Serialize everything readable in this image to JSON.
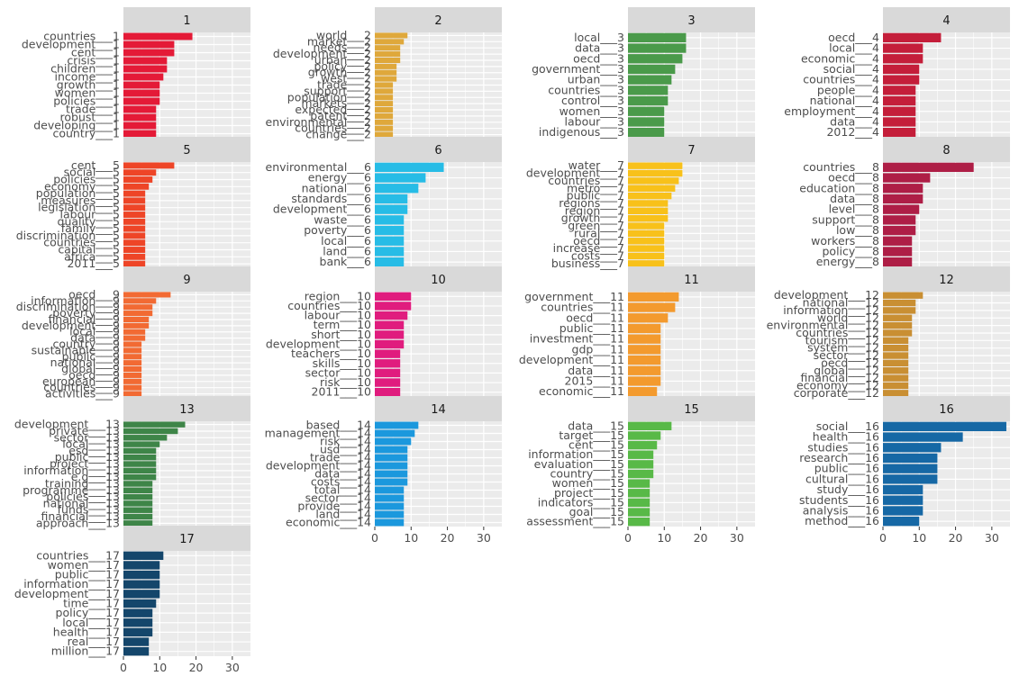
{
  "chart_data": {
    "type": "bar",
    "orientation": "horizontal",
    "facet_layout": "4 columns x 5 rows",
    "xlim": [
      0,
      35
    ],
    "x_ticks": [
      0,
      10,
      20,
      30
    ],
    "grid": true,
    "legend": "none",
    "panels": [
      {
        "title": "1",
        "color": "#E41A37",
        "terms": [
          "countries___1",
          "development___1",
          "cent___1",
          "crisis___1",
          "children___1",
          "income___1",
          "growth___1",
          "women___1",
          "policies___1",
          "trade___1",
          "robust___1",
          "developing___1",
          "country___1"
        ],
        "values": [
          19,
          14,
          14,
          12,
          12,
          11,
          10,
          10,
          10,
          9,
          9,
          9,
          9
        ]
      },
      {
        "title": "2",
        "color": "#DFA83B",
        "terms": [
          "world___2",
          "market___2",
          "needs___2",
          "development___2",
          "urban___2",
          "policy___2",
          "growth___2",
          "west___2",
          "trade___2",
          "support___2",
          "population___2",
          "markets___2",
          "expected___2",
          "patent___2",
          "environmental___2",
          "countries___2",
          "change___2"
        ],
        "values": [
          9,
          8,
          7,
          7,
          7,
          6,
          6,
          6,
          5,
          5,
          5,
          5,
          5,
          5,
          5,
          5,
          5
        ]
      },
      {
        "title": "3",
        "color": "#4A9A4A",
        "terms": [
          "local___3",
          "data___3",
          "oecd___3",
          "government___3",
          "urban___3",
          "countries___3",
          "control___3",
          "women___3",
          "labour___3",
          "indigenous___3"
        ],
        "values": [
          16,
          16,
          15,
          13,
          12,
          11,
          11,
          10,
          10,
          10
        ]
      },
      {
        "title": "4",
        "color": "#C41E3A",
        "terms": [
          "oecd___4",
          "local___4",
          "economic___4",
          "social___4",
          "countries___4",
          "people___4",
          "national___4",
          "employment___4",
          "data___4",
          "2012___4"
        ],
        "values": [
          16,
          11,
          11,
          10,
          10,
          9,
          9,
          9,
          9,
          9
        ]
      },
      {
        "title": "5",
        "color": "#EE4527",
        "terms": [
          "cent___5",
          "social___5",
          "policies___5",
          "economy___5",
          "population___5",
          "measures___5",
          "legislation___5",
          "labour___5",
          "quality___5",
          "family___5",
          "discrimination___5",
          "countries___5",
          "capital___5",
          "africa___5",
          "2011___5"
        ],
        "values": [
          14,
          9,
          8,
          7,
          6,
          6,
          6,
          6,
          6,
          6,
          6,
          6,
          6,
          6,
          6
        ]
      },
      {
        "title": "6",
        "color": "#27BCE6",
        "terms": [
          "environmental___6",
          "energy___6",
          "national___6",
          "standards___6",
          "development___6",
          "waste___6",
          "poverty___6",
          "local___6",
          "land___6",
          "bank___6"
        ],
        "values": [
          19,
          14,
          12,
          9,
          9,
          8,
          8,
          8,
          8,
          8
        ]
      },
      {
        "title": "7",
        "color": "#F8C11A",
        "terms": [
          "water___7",
          "development___7",
          "countries___7",
          "metro___7",
          "public___7",
          "regions___7",
          "region___7",
          "growth___7",
          "green___7",
          "rural___7",
          "oecd___7",
          "increase___7",
          "costs___7",
          "business___7"
        ],
        "values": [
          15,
          15,
          14,
          13,
          12,
          11,
          11,
          11,
          10,
          10,
          10,
          10,
          10,
          10
        ]
      },
      {
        "title": "8",
        "color": "#AE1E46",
        "terms": [
          "countries___8",
          "oecd___8",
          "education___8",
          "data___8",
          "level___8",
          "support___8",
          "low___8",
          "workers___8",
          "policy___8",
          "energy___8"
        ],
        "values": [
          25,
          13,
          11,
          11,
          10,
          9,
          9,
          8,
          8,
          8
        ]
      },
      {
        "title": "9",
        "color": "#F26A33",
        "terms": [
          "oecd___9",
          "information___9",
          "discrimination___9",
          "poverty___9",
          "financial___9",
          "development___9",
          "local___9",
          "data___9",
          "country___9",
          "sustainable___9",
          "public___9",
          "national___9",
          "global___9",
          "oecd___9",
          "european___9",
          "countries___9",
          "activities___9"
        ],
        "values": [
          13,
          9,
          8,
          8,
          7,
          7,
          6,
          6,
          5,
          5,
          5,
          5,
          5,
          5,
          5,
          5,
          5
        ]
      },
      {
        "title": "10",
        "color": "#E01C7E",
        "terms": [
          "region___10",
          "countries___10",
          "labour___10",
          "term___10",
          "short___10",
          "development___10",
          "teachers___10",
          "skills___10",
          "sector___10",
          "risk___10",
          "2011___10"
        ],
        "values": [
          10,
          10,
          9,
          8,
          8,
          8,
          7,
          7,
          7,
          7,
          7
        ]
      },
      {
        "title": "11",
        "color": "#F39A2E",
        "terms": [
          "government___11",
          "countries___11",
          "oecd___11",
          "public___11",
          "investment___11",
          "gdp___11",
          "development___11",
          "data___11",
          "2015___11",
          "economic___11"
        ],
        "values": [
          14,
          13,
          11,
          9,
          9,
          9,
          9,
          9,
          9,
          8
        ]
      },
      {
        "title": "12",
        "color": "#C98F33",
        "terms": [
          "development___12",
          "national___12",
          "information___12",
          "world___12",
          "environmental___12",
          "countries___12",
          "tourism___12",
          "system___12",
          "sector___12",
          "oecd___12",
          "global___12",
          "financial___12",
          "economy___12",
          "corporate___12"
        ],
        "values": [
          11,
          9,
          9,
          8,
          8,
          8,
          7,
          7,
          7,
          7,
          7,
          7,
          7,
          7
        ]
      },
      {
        "title": "13",
        "color": "#3E8548",
        "terms": [
          "development___13",
          "private___13",
          "sector___13",
          "local___13",
          "esd___13",
          "public___13",
          "project___13",
          "information___13",
          "e.g___13",
          "training___13",
          "programme___13",
          "policies___13",
          "national___13",
          "funds___13",
          "financial___13",
          "approach___13"
        ],
        "values": [
          17,
          15,
          12,
          10,
          9,
          9,
          9,
          9,
          9,
          8,
          8,
          8,
          8,
          8,
          8,
          8
        ]
      },
      {
        "title": "14",
        "color": "#1B98DD",
        "terms": [
          "based___14",
          "management___14",
          "risk___14",
          "usd___14",
          "trade___14",
          "development___14",
          "data___14",
          "costs___14",
          "total___14",
          "sector___14",
          "provide___14",
          "land___14",
          "economic___14"
        ],
        "values": [
          12,
          11,
          10,
          9,
          9,
          9,
          9,
          9,
          8,
          8,
          8,
          8,
          8
        ]
      },
      {
        "title": "15",
        "color": "#58B947",
        "terms": [
          "data___15",
          "target___15",
          "cent___15",
          "information___15",
          "evaluation___15",
          "country___15",
          "women___15",
          "project___15",
          "indicators___15",
          "goal___15",
          "assessment___15"
        ],
        "values": [
          12,
          9,
          8,
          7,
          7,
          7,
          6,
          6,
          6,
          6,
          6
        ]
      },
      {
        "title": "16",
        "color": "#1668A5",
        "terms": [
          "social___16",
          "health___16",
          "studies___16",
          "research___16",
          "public___16",
          "cultural___16",
          "study___16",
          "students___16",
          "analysis___16",
          "method___16"
        ],
        "values": [
          34,
          22,
          16,
          15,
          15,
          15,
          11,
          11,
          11,
          10
        ]
      },
      {
        "title": "17",
        "color": "#14466B",
        "terms": [
          "countries___17",
          "women___17",
          "public___17",
          "information___17",
          "development___17",
          "time___17",
          "policy___17",
          "local___17",
          "health___17",
          "real___17",
          "million___17"
        ],
        "values": [
          11,
          10,
          10,
          10,
          10,
          9,
          8,
          8,
          8,
          7,
          7
        ]
      }
    ]
  }
}
